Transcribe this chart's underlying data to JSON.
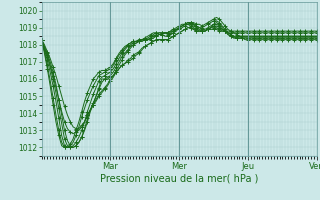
{
  "title": "Pression niveau de la mer( hPa )",
  "bg_color": "#cce8e8",
  "line_color": "#1a6b1a",
  "ylim": [
    1011.5,
    1020.5
  ],
  "yticks": [
    1012,
    1013,
    1014,
    1015,
    1016,
    1017,
    1018,
    1019,
    1020
  ],
  "day_labels": [
    "Mar",
    "Mer",
    "Jeu",
    "Ven"
  ],
  "day_positions": [
    0.25,
    0.5,
    0.75,
    1.0
  ],
  "n_points": 97,
  "series": [
    [
      1018.3,
      1017.8,
      1017.3,
      1016.7,
      1016.0,
      1015.2,
      1014.3,
      1013.4,
      1012.5,
      1012.1,
      1012.0,
      1012.0,
      1012.1,
      1012.3,
      1012.6,
      1013.0,
      1013.5,
      1014.1,
      1014.5,
      1015.0,
      1015.5,
      1016.0,
      1016.0,
      1016.0,
      1016.1,
      1016.2,
      1016.5,
      1016.8,
      1017.1,
      1017.4,
      1017.6,
      1017.8,
      1018.0,
      1018.1,
      1018.2,
      1018.2,
      1018.3,
      1018.3,
      1018.4,
      1018.5,
      1018.5,
      1018.6,
      1018.6,
      1018.7,
      1018.7,
      1018.8,
      1018.8,
      1018.9,
      1018.9,
      1019.0,
      1019.1,
      1019.2,
      1019.3,
      1019.3,
      1019.2,
      1019.2,
      1019.1,
      1019.2,
      1019.3,
      1019.4,
      1019.5,
      1019.6,
      1019.5,
      1019.3,
      1019.1,
      1018.9,
      1018.8,
      1018.7,
      1018.6,
      1018.5,
      1018.4,
      1018.3,
      1018.3,
      1018.3,
      1018.3,
      1018.3,
      1018.3,
      1018.3,
      1018.3,
      1018.3,
      1018.3,
      1018.3,
      1018.3,
      1018.3,
      1018.3,
      1018.3,
      1018.3,
      1018.3,
      1018.3,
      1018.3,
      1018.3,
      1018.3,
      1018.3,
      1018.3,
      1018.3,
      1018.3,
      1018.3
    ],
    [
      1018.3,
      1017.9,
      1017.5,
      1017.0,
      1016.4,
      1015.7,
      1014.8,
      1013.9,
      1013.0,
      1012.4,
      1012.1,
      1012.0,
      1012.1,
      1012.3,
      1012.6,
      1013.1,
      1013.7,
      1014.2,
      1014.6,
      1015.0,
      1015.4,
      1015.8,
      1016.0,
      1016.1,
      1016.2,
      1016.4,
      1016.7,
      1017.0,
      1017.3,
      1017.5,
      1017.7,
      1017.9,
      1018.0,
      1018.1,
      1018.2,
      1018.2,
      1018.3,
      1018.3,
      1018.3,
      1018.4,
      1018.5,
      1018.6,
      1018.6,
      1018.7,
      1018.7,
      1018.8,
      1018.9,
      1019.0,
      1019.1,
      1019.2,
      1019.2,
      1019.2,
      1019.2,
      1019.1,
      1019.0,
      1019.0,
      1019.0,
      1019.1,
      1019.2,
      1019.3,
      1019.4,
      1019.4,
      1019.3,
      1019.1,
      1018.9,
      1018.7,
      1018.6,
      1018.5,
      1018.5,
      1018.5,
      1018.5,
      1018.5,
      1018.5,
      1018.5,
      1018.5,
      1018.5,
      1018.5,
      1018.5,
      1018.5,
      1018.5,
      1018.5,
      1018.5,
      1018.5,
      1018.5,
      1018.5,
      1018.5,
      1018.5,
      1018.5,
      1018.5,
      1018.5,
      1018.5,
      1018.5,
      1018.5,
      1018.5,
      1018.5,
      1018.5,
      1018.5
    ],
    [
      1018.3,
      1017.7,
      1017.1,
      1016.4,
      1015.6,
      1014.7,
      1013.7,
      1012.7,
      1012.1,
      1012.0,
      1012.0,
      1012.1,
      1012.3,
      1012.6,
      1013.0,
      1013.5,
      1014.1,
      1014.6,
      1015.1,
      1015.5,
      1015.9,
      1016.1,
      1016.2,
      1016.3,
      1016.4,
      1016.6,
      1016.9,
      1017.2,
      1017.5,
      1017.7,
      1017.9,
      1018.0,
      1018.1,
      1018.2,
      1018.2,
      1018.3,
      1018.3,
      1018.3,
      1018.4,
      1018.5,
      1018.6,
      1018.7,
      1018.7,
      1018.7,
      1018.7,
      1018.7,
      1018.8,
      1018.9,
      1019.0,
      1019.1,
      1019.2,
      1019.3,
      1019.3,
      1019.2,
      1019.1,
      1019.0,
      1018.9,
      1018.9,
      1019.0,
      1019.1,
      1019.2,
      1019.3,
      1019.2,
      1019.0,
      1018.8,
      1018.6,
      1018.5,
      1018.4,
      1018.4,
      1018.5,
      1018.5,
      1018.5,
      1018.5,
      1018.5,
      1018.5,
      1018.5,
      1018.5,
      1018.5,
      1018.5,
      1018.5,
      1018.5,
      1018.5,
      1018.5,
      1018.5,
      1018.5,
      1018.5,
      1018.5,
      1018.5,
      1018.5,
      1018.5,
      1018.5,
      1018.5,
      1018.5,
      1018.5,
      1018.5,
      1018.5,
      1018.5
    ],
    [
      1018.3,
      1017.6,
      1016.8,
      1015.9,
      1014.9,
      1013.9,
      1013.0,
      1012.3,
      1012.0,
      1012.0,
      1012.1,
      1012.3,
      1012.7,
      1013.2,
      1013.8,
      1014.3,
      1014.8,
      1015.2,
      1015.6,
      1015.9,
      1016.2,
      1016.3,
      1016.4,
      1016.5,
      1016.6,
      1016.8,
      1017.1,
      1017.4,
      1017.6,
      1017.8,
      1018.0,
      1018.1,
      1018.2,
      1018.2,
      1018.3,
      1018.3,
      1018.3,
      1018.4,
      1018.5,
      1018.6,
      1018.7,
      1018.7,
      1018.7,
      1018.7,
      1018.6,
      1018.6,
      1018.7,
      1018.8,
      1019.0,
      1019.1,
      1019.2,
      1019.3,
      1019.3,
      1019.2,
      1019.0,
      1018.9,
      1018.8,
      1018.8,
      1018.9,
      1019.0,
      1019.2,
      1019.2,
      1019.1,
      1018.9,
      1018.8,
      1018.6,
      1018.5,
      1018.4,
      1018.4,
      1018.4,
      1018.4,
      1018.4,
      1018.4,
      1018.4,
      1018.4,
      1018.4,
      1018.4,
      1018.4,
      1018.4,
      1018.4,
      1018.4,
      1018.4,
      1018.4,
      1018.4,
      1018.4,
      1018.4,
      1018.4,
      1018.4,
      1018.4,
      1018.4,
      1018.4,
      1018.4,
      1018.4,
      1018.4,
      1018.4,
      1018.4,
      1018.4
    ],
    [
      1018.3,
      1017.5,
      1016.6,
      1015.6,
      1014.5,
      1013.5,
      1012.7,
      1012.1,
      1012.0,
      1012.0,
      1012.2,
      1012.5,
      1013.0,
      1013.5,
      1014.1,
      1014.7,
      1015.2,
      1015.6,
      1016.0,
      1016.2,
      1016.4,
      1016.5,
      1016.5,
      1016.6,
      1016.7,
      1016.9,
      1017.2,
      1017.5,
      1017.7,
      1017.9,
      1018.0,
      1018.1,
      1018.2,
      1018.2,
      1018.3,
      1018.3,
      1018.4,
      1018.5,
      1018.6,
      1018.7,
      1018.7,
      1018.6,
      1018.6,
      1018.5,
      1018.5,
      1018.6,
      1018.7,
      1018.9,
      1019.0,
      1019.1,
      1019.2,
      1019.2,
      1019.1,
      1019.0,
      1018.9,
      1018.8,
      1018.8,
      1018.8,
      1018.9,
      1019.0,
      1019.1,
      1019.1,
      1019.0,
      1018.9,
      1018.8,
      1018.7,
      1018.6,
      1018.5,
      1018.4,
      1018.4,
      1018.4,
      1018.4,
      1018.4,
      1018.4,
      1018.4,
      1018.4,
      1018.4,
      1018.4,
      1018.4,
      1018.4,
      1018.4,
      1018.4,
      1018.4,
      1018.4,
      1018.4,
      1018.4,
      1018.4,
      1018.4,
      1018.4,
      1018.4,
      1018.4,
      1018.4,
      1018.4,
      1018.4,
      1018.4,
      1018.4,
      1018.4
    ],
    [
      1018.3,
      1018.0,
      1017.6,
      1017.2,
      1016.7,
      1016.2,
      1015.6,
      1015.0,
      1014.4,
      1013.9,
      1013.5,
      1013.2,
      1013.1,
      1013.1,
      1013.3,
      1013.5,
      1013.9,
      1014.2,
      1014.5,
      1014.7,
      1015.0,
      1015.2,
      1015.4,
      1015.6,
      1015.9,
      1016.1,
      1016.4,
      1016.6,
      1016.8,
      1016.9,
      1017.1,
      1017.2,
      1017.4,
      1017.5,
      1017.6,
      1017.8,
      1017.9,
      1018.0,
      1018.1,
      1018.2,
      1018.3,
      1018.3,
      1018.3,
      1018.3,
      1018.3,
      1018.4,
      1018.5,
      1018.6,
      1018.7,
      1018.8,
      1018.9,
      1019.0,
      1019.0,
      1018.9,
      1018.8,
      1018.8,
      1018.8,
      1018.8,
      1018.9,
      1019.0,
      1019.0,
      1019.0,
      1018.9,
      1018.8,
      1018.8,
      1018.7,
      1018.7,
      1018.7,
      1018.7,
      1018.7,
      1018.7,
      1018.7,
      1018.7,
      1018.7,
      1018.7,
      1018.7,
      1018.7,
      1018.7,
      1018.7,
      1018.7,
      1018.7,
      1018.7,
      1018.7,
      1018.7,
      1018.7,
      1018.7,
      1018.7,
      1018.7,
      1018.7,
      1018.7,
      1018.7,
      1018.7,
      1018.7,
      1018.7,
      1018.7,
      1018.7,
      1018.7
    ],
    [
      1018.3,
      1017.8,
      1017.4,
      1016.8,
      1016.2,
      1015.5,
      1014.8,
      1014.1,
      1013.5,
      1013.1,
      1012.9,
      1012.8,
      1012.9,
      1013.0,
      1013.2,
      1013.5,
      1013.9,
      1014.2,
      1014.5,
      1014.8,
      1015.1,
      1015.3,
      1015.5,
      1015.7,
      1016.0,
      1016.2,
      1016.4,
      1016.6,
      1016.8,
      1016.9,
      1017.0,
      1017.1,
      1017.2,
      1017.4,
      1017.5,
      1017.7,
      1017.9,
      1018.0,
      1018.1,
      1018.2,
      1018.3,
      1018.3,
      1018.3,
      1018.3,
      1018.3,
      1018.4,
      1018.5,
      1018.6,
      1018.7,
      1018.8,
      1018.9,
      1019.0,
      1019.0,
      1018.9,
      1018.8,
      1018.8,
      1018.8,
      1018.8,
      1018.9,
      1018.9,
      1018.9,
      1018.9,
      1018.8,
      1018.8,
      1018.8,
      1018.8,
      1018.8,
      1018.8,
      1018.8,
      1018.8,
      1018.8,
      1018.8,
      1018.8,
      1018.8,
      1018.8,
      1018.8,
      1018.8,
      1018.8,
      1018.8,
      1018.8,
      1018.8,
      1018.8,
      1018.8,
      1018.8,
      1018.8,
      1018.8,
      1018.8,
      1018.8,
      1018.8,
      1018.8,
      1018.8,
      1018.8,
      1018.8,
      1018.8,
      1018.8,
      1018.8,
      1018.8
    ]
  ]
}
